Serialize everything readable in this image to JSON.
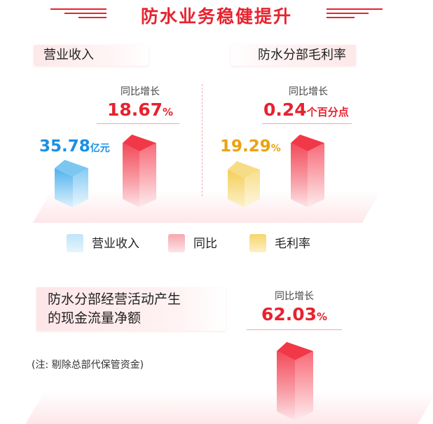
{
  "header": {
    "title": "防水业务稳健提升"
  },
  "panels": {
    "revenue": {
      "tab_label": "营业收入",
      "yoy_label": "同比增长",
      "yoy_value": "18.67",
      "yoy_unit": "%",
      "revenue_value": "35.78",
      "revenue_unit": "亿元"
    },
    "margin": {
      "tab_label": "防水分部毛利率",
      "yoy_label": "同比增长",
      "yoy_value": "0.24",
      "yoy_unit": "个百分点",
      "margin_value": "19.29",
      "margin_unit": "%"
    },
    "cashflow": {
      "title_line1": "防水分部经营活动产生",
      "title_line2": "的现金流量净额",
      "note": "(注: 剔除总部代保管资金)",
      "yoy_label": "同比增长",
      "yoy_value": "62.03",
      "yoy_unit": "%"
    }
  },
  "legend": {
    "items": [
      {
        "label": "营业收入",
        "color": "#a7d9f5"
      },
      {
        "label": "同比",
        "color": "#f9a0a8"
      },
      {
        "label": "毛利率",
        "color": "#f6d56e"
      }
    ]
  },
  "colors": {
    "accent_red": "#e8222e",
    "blue": "#1a8fe3",
    "gold": "#eaa212"
  },
  "chart_data": [
    {
      "type": "bar",
      "title": "营业收入",
      "series": [
        {
          "name": "营业收入",
          "values": [
            35.78
          ],
          "unit": "亿元"
        },
        {
          "name": "同比",
          "values": [
            18.67
          ],
          "unit": "%"
        }
      ]
    },
    {
      "type": "bar",
      "title": "防水分部毛利率",
      "series": [
        {
          "name": "毛利率",
          "values": [
            19.29
          ],
          "unit": "%"
        },
        {
          "name": "同比",
          "values": [
            0.24
          ],
          "unit": "个百分点"
        }
      ]
    },
    {
      "type": "bar",
      "series": [
        {
          "name": "同比",
          "values": [
            62.03
          ],
          "unit": "%"
        }
      ]
    }
  ]
}
